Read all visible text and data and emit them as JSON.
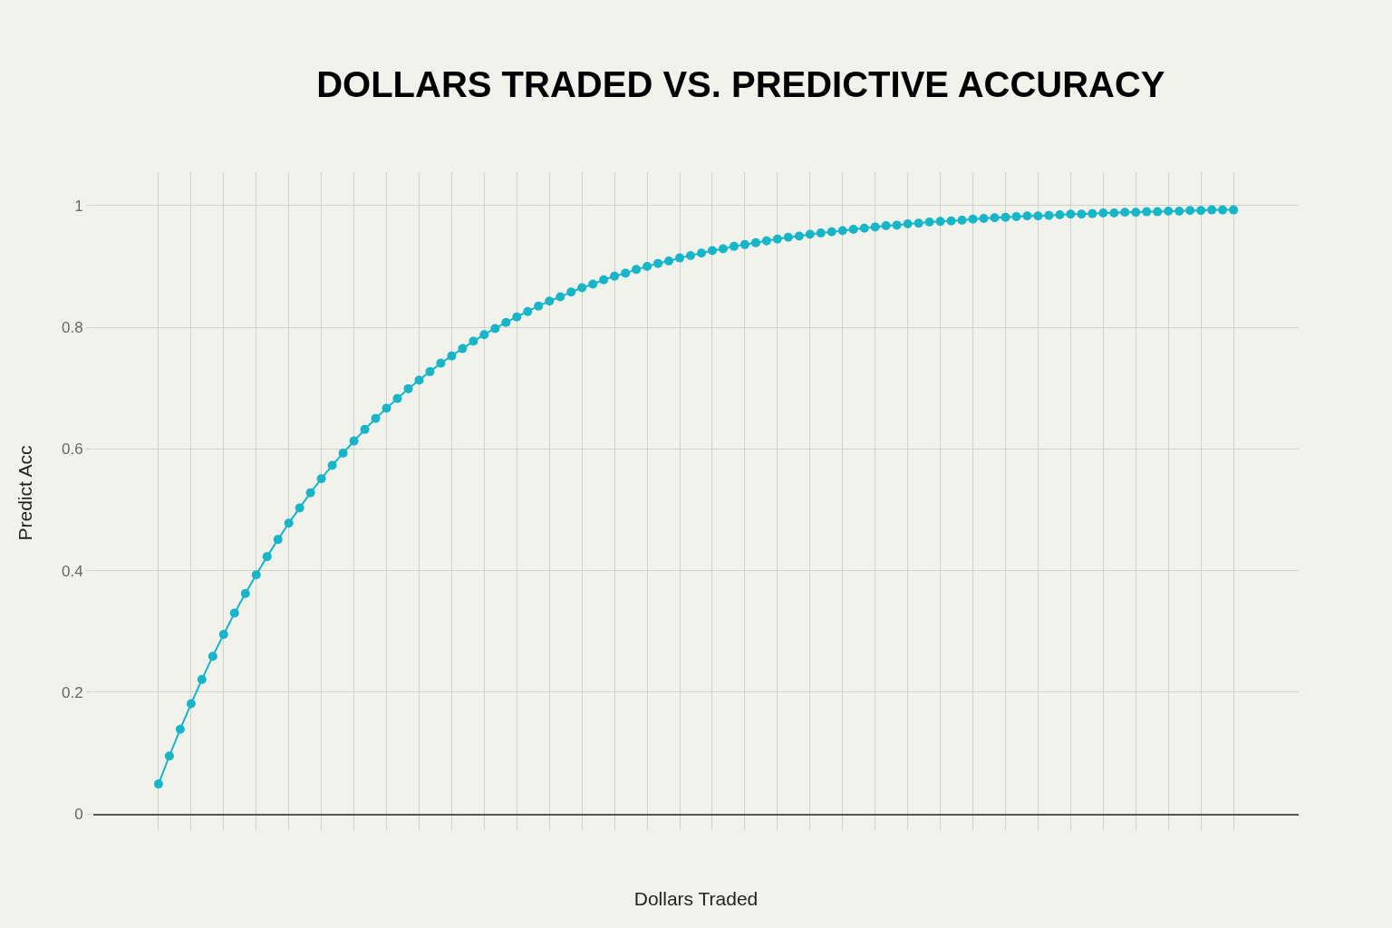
{
  "chart_data": {
    "type": "line",
    "title": "DOLLARS TRADED VS. PREDICTIVE ACCURACY",
    "xlabel": "Dollars Traded",
    "ylabel": "Predict Acc",
    "categories": [
      null,
      null,
      null,
      null,
      null,
      null,
      null,
      null,
      null,
      null,
      null,
      null,
      null,
      null,
      null,
      null,
      null,
      null,
      null,
      null,
      null,
      null,
      null,
      null,
      null,
      null,
      null,
      null,
      null,
      null,
      null,
      null,
      null,
      null,
      null,
      null,
      null,
      null,
      null,
      null,
      null,
      null,
      null,
      null,
      null,
      null,
      null,
      null,
      null,
      null,
      null,
      null,
      null,
      null,
      null,
      null,
      null,
      null,
      null,
      null,
      null,
      null,
      null,
      null,
      null,
      null,
      null,
      null,
      null,
      null,
      null,
      null,
      null,
      null,
      null,
      null,
      null,
      null,
      null,
      null,
      null,
      null,
      null,
      null,
      null,
      null,
      null,
      null,
      null,
      null,
      null,
      null,
      null,
      null,
      null,
      null,
      null,
      null,
      null,
      null
    ],
    "series": [
      {
        "color": "#17b5c8",
        "values": [
          0.049,
          0.095,
          0.139,
          0.181,
          0.221,
          0.259,
          0.295,
          0.33,
          0.362,
          0.393,
          0.423,
          0.451,
          0.478,
          0.503,
          0.528,
          0.551,
          0.573,
          0.593,
          0.613,
          0.632,
          0.65,
          0.667,
          0.683,
          0.699,
          0.713,
          0.727,
          0.741,
          0.753,
          0.765,
          0.777,
          0.788,
          0.798,
          0.808,
          0.817,
          0.826,
          0.835,
          0.843,
          0.85,
          0.858,
          0.865,
          0.871,
          0.878,
          0.884,
          0.889,
          0.895,
          0.9,
          0.905,
          0.909,
          0.914,
          0.918,
          0.922,
          0.926,
          0.929,
          0.933,
          0.936,
          0.939,
          0.942,
          0.945,
          0.948,
          0.95,
          0.953,
          0.955,
          0.957,
          0.959,
          0.961,
          0.963,
          0.965,
          0.967,
          0.968,
          0.97,
          0.971,
          0.973,
          0.974,
          0.975,
          0.976,
          0.978,
          0.979,
          0.98,
          0.981,
          0.982,
          0.983,
          0.983,
          0.984,
          0.985,
          0.986,
          0.986,
          0.987,
          0.988,
          0.988,
          0.989,
          0.989,
          0.99,
          0.99,
          0.991,
          0.991,
          0.992,
          0.992,
          0.993,
          0.993,
          0.993
        ]
      }
    ],
    "ylim": [
      0,
      1.055
    ],
    "yticks": [
      0,
      0.2,
      0.4,
      0.6,
      0.8,
      1
    ],
    "grid": true,
    "marker": "circle",
    "line_style": "solid",
    "tick_labels": "y"
  }
}
